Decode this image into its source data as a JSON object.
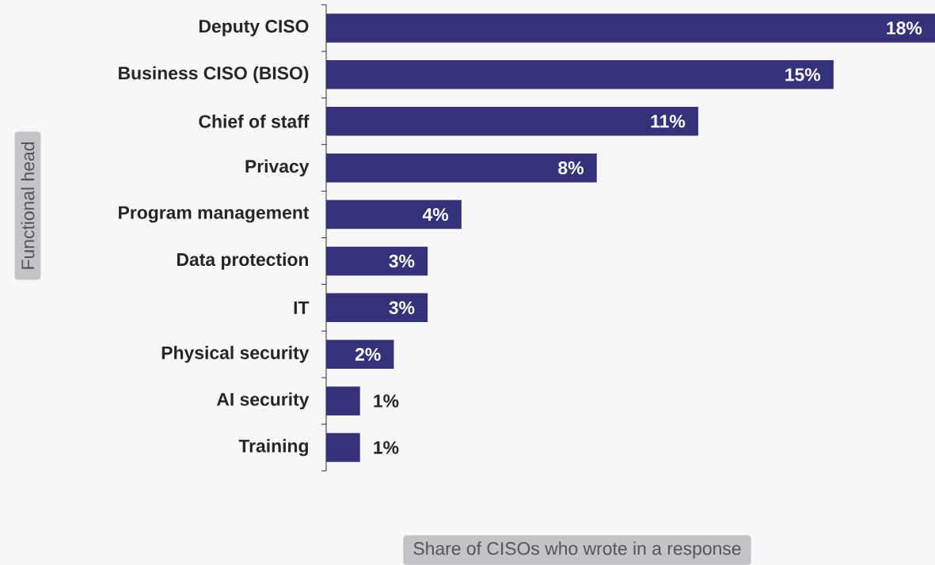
{
  "chart_data": {
    "type": "bar",
    "orientation": "horizontal",
    "annotations": [
      "Share of CISOs who wrote in a response",
      "Functional head"
    ],
    "categories": [
      "Deputy CISO",
      "Business CISO (BISO)",
      "Chief of staff",
      "Privacy",
      "Program management",
      "Data protection",
      "IT",
      "Physical security",
      "AI security",
      "Training"
    ],
    "values": [
      18,
      15,
      11,
      8,
      4,
      3,
      3,
      2,
      1,
      1
    ],
    "value_labels": [
      "18%",
      "15%",
      "11%",
      "8%",
      "4%",
      "3%",
      "3%",
      "2%",
      "1%",
      "1%"
    ],
    "color": "#35327a",
    "grid": false,
    "legend": false
  }
}
